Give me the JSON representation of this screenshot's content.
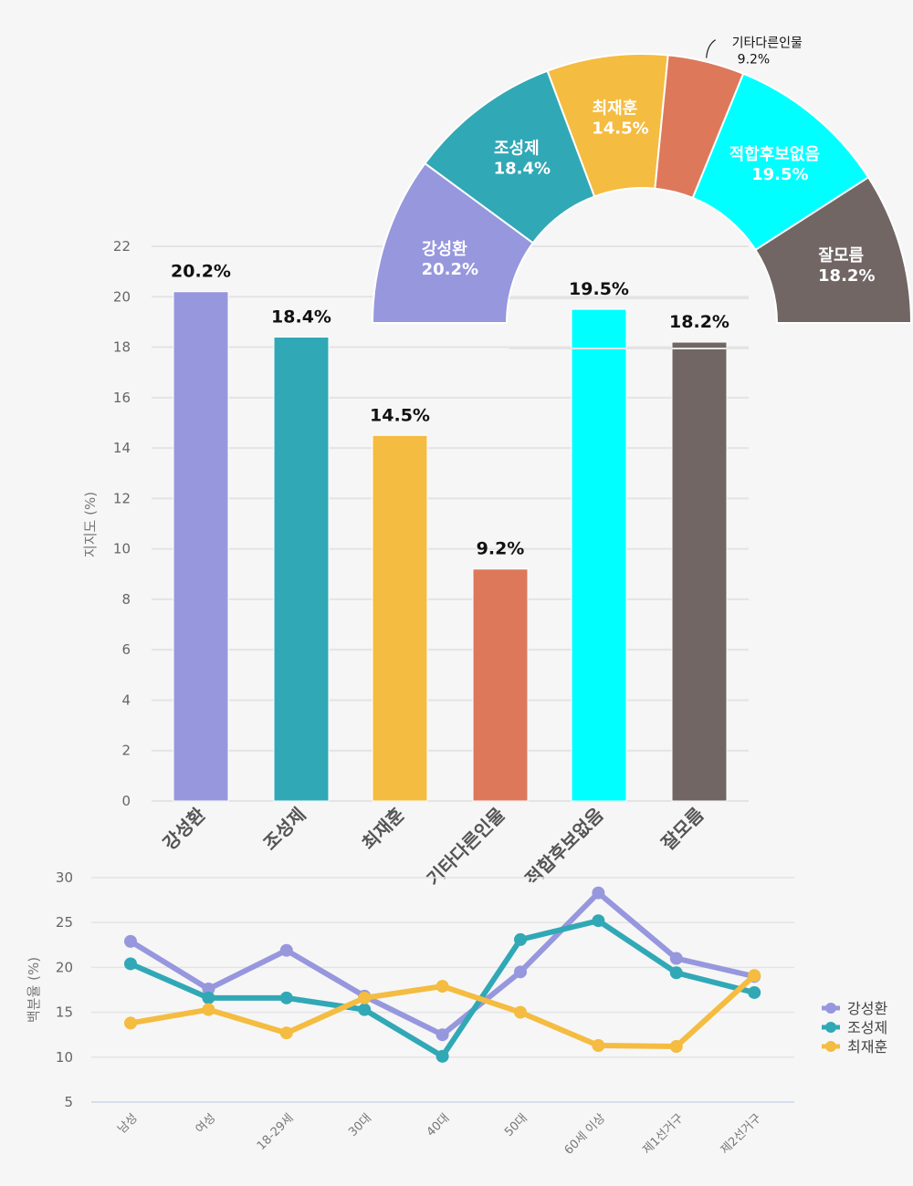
{
  "chart_data": [
    {
      "type": "bar",
      "title": "",
      "xlabel": "",
      "ylabel": "지지도 (%)",
      "ylim": [
        0,
        22
      ],
      "yticks": [
        0,
        2,
        4,
        6,
        8,
        10,
        12,
        14,
        16,
        18,
        20,
        22
      ],
      "grid": true,
      "categories": [
        "강성환",
        "조성제",
        "최재훈",
        "기타다른인물",
        "적합후보없음",
        "잘모름"
      ],
      "values": [
        20.2,
        18.4,
        14.5,
        9.2,
        19.5,
        18.2
      ],
      "data_labels": [
        "20.2%",
        "18.4%",
        "14.5%",
        "9.2%",
        "19.5%",
        "18.2%"
      ],
      "colors": [
        "#9797de",
        "#31a8b6",
        "#f4bc40",
        "#dd785b",
        "#00ffff",
        "#716664"
      ]
    },
    {
      "type": "pie",
      "variant": "semi-donut",
      "title": "",
      "categories": [
        "강성환",
        "조성제",
        "최재훈",
        "기타다른인물",
        "적합후보없음",
        "잘모름"
      ],
      "values": [
        20.2,
        18.4,
        14.5,
        9.2,
        19.5,
        18.2
      ],
      "data_labels": [
        "20.2%",
        "18.4%",
        "14.5%",
        "9.2%",
        "19.5%",
        "18.2%"
      ],
      "colors": [
        "#9797de",
        "#31a8b6",
        "#f4bc40",
        "#dd785b",
        "#00ffff",
        "#716664"
      ],
      "external_label_index": 3
    },
    {
      "type": "line",
      "title": "",
      "xlabel": "",
      "ylabel": "백분율 (%)",
      "ylim": [
        5,
        30
      ],
      "yticks": [
        5,
        10,
        15,
        20,
        25,
        30
      ],
      "grid": true,
      "categories": [
        "남성",
        "여성",
        "18-29세",
        "30대",
        "40대",
        "50대",
        "60세 이상",
        "제1선거구",
        "제2선거구"
      ],
      "series": [
        {
          "name": "강성환",
          "color": "#9797de",
          "values": [
            22.9,
            17.6,
            21.9,
            16.8,
            12.5,
            19.5,
            28.3,
            21.0,
            19.0
          ]
        },
        {
          "name": "조성제",
          "color": "#31a8b6",
          "values": [
            20.4,
            16.6,
            16.6,
            15.3,
            10.1,
            23.1,
            25.2,
            19.4,
            17.2
          ]
        },
        {
          "name": "최재훈",
          "color": "#f4bc40",
          "values": [
            13.8,
            15.3,
            12.7,
            16.6,
            17.9,
            15.0,
            11.3,
            11.2,
            19.1
          ]
        }
      ],
      "legend": "right"
    }
  ]
}
